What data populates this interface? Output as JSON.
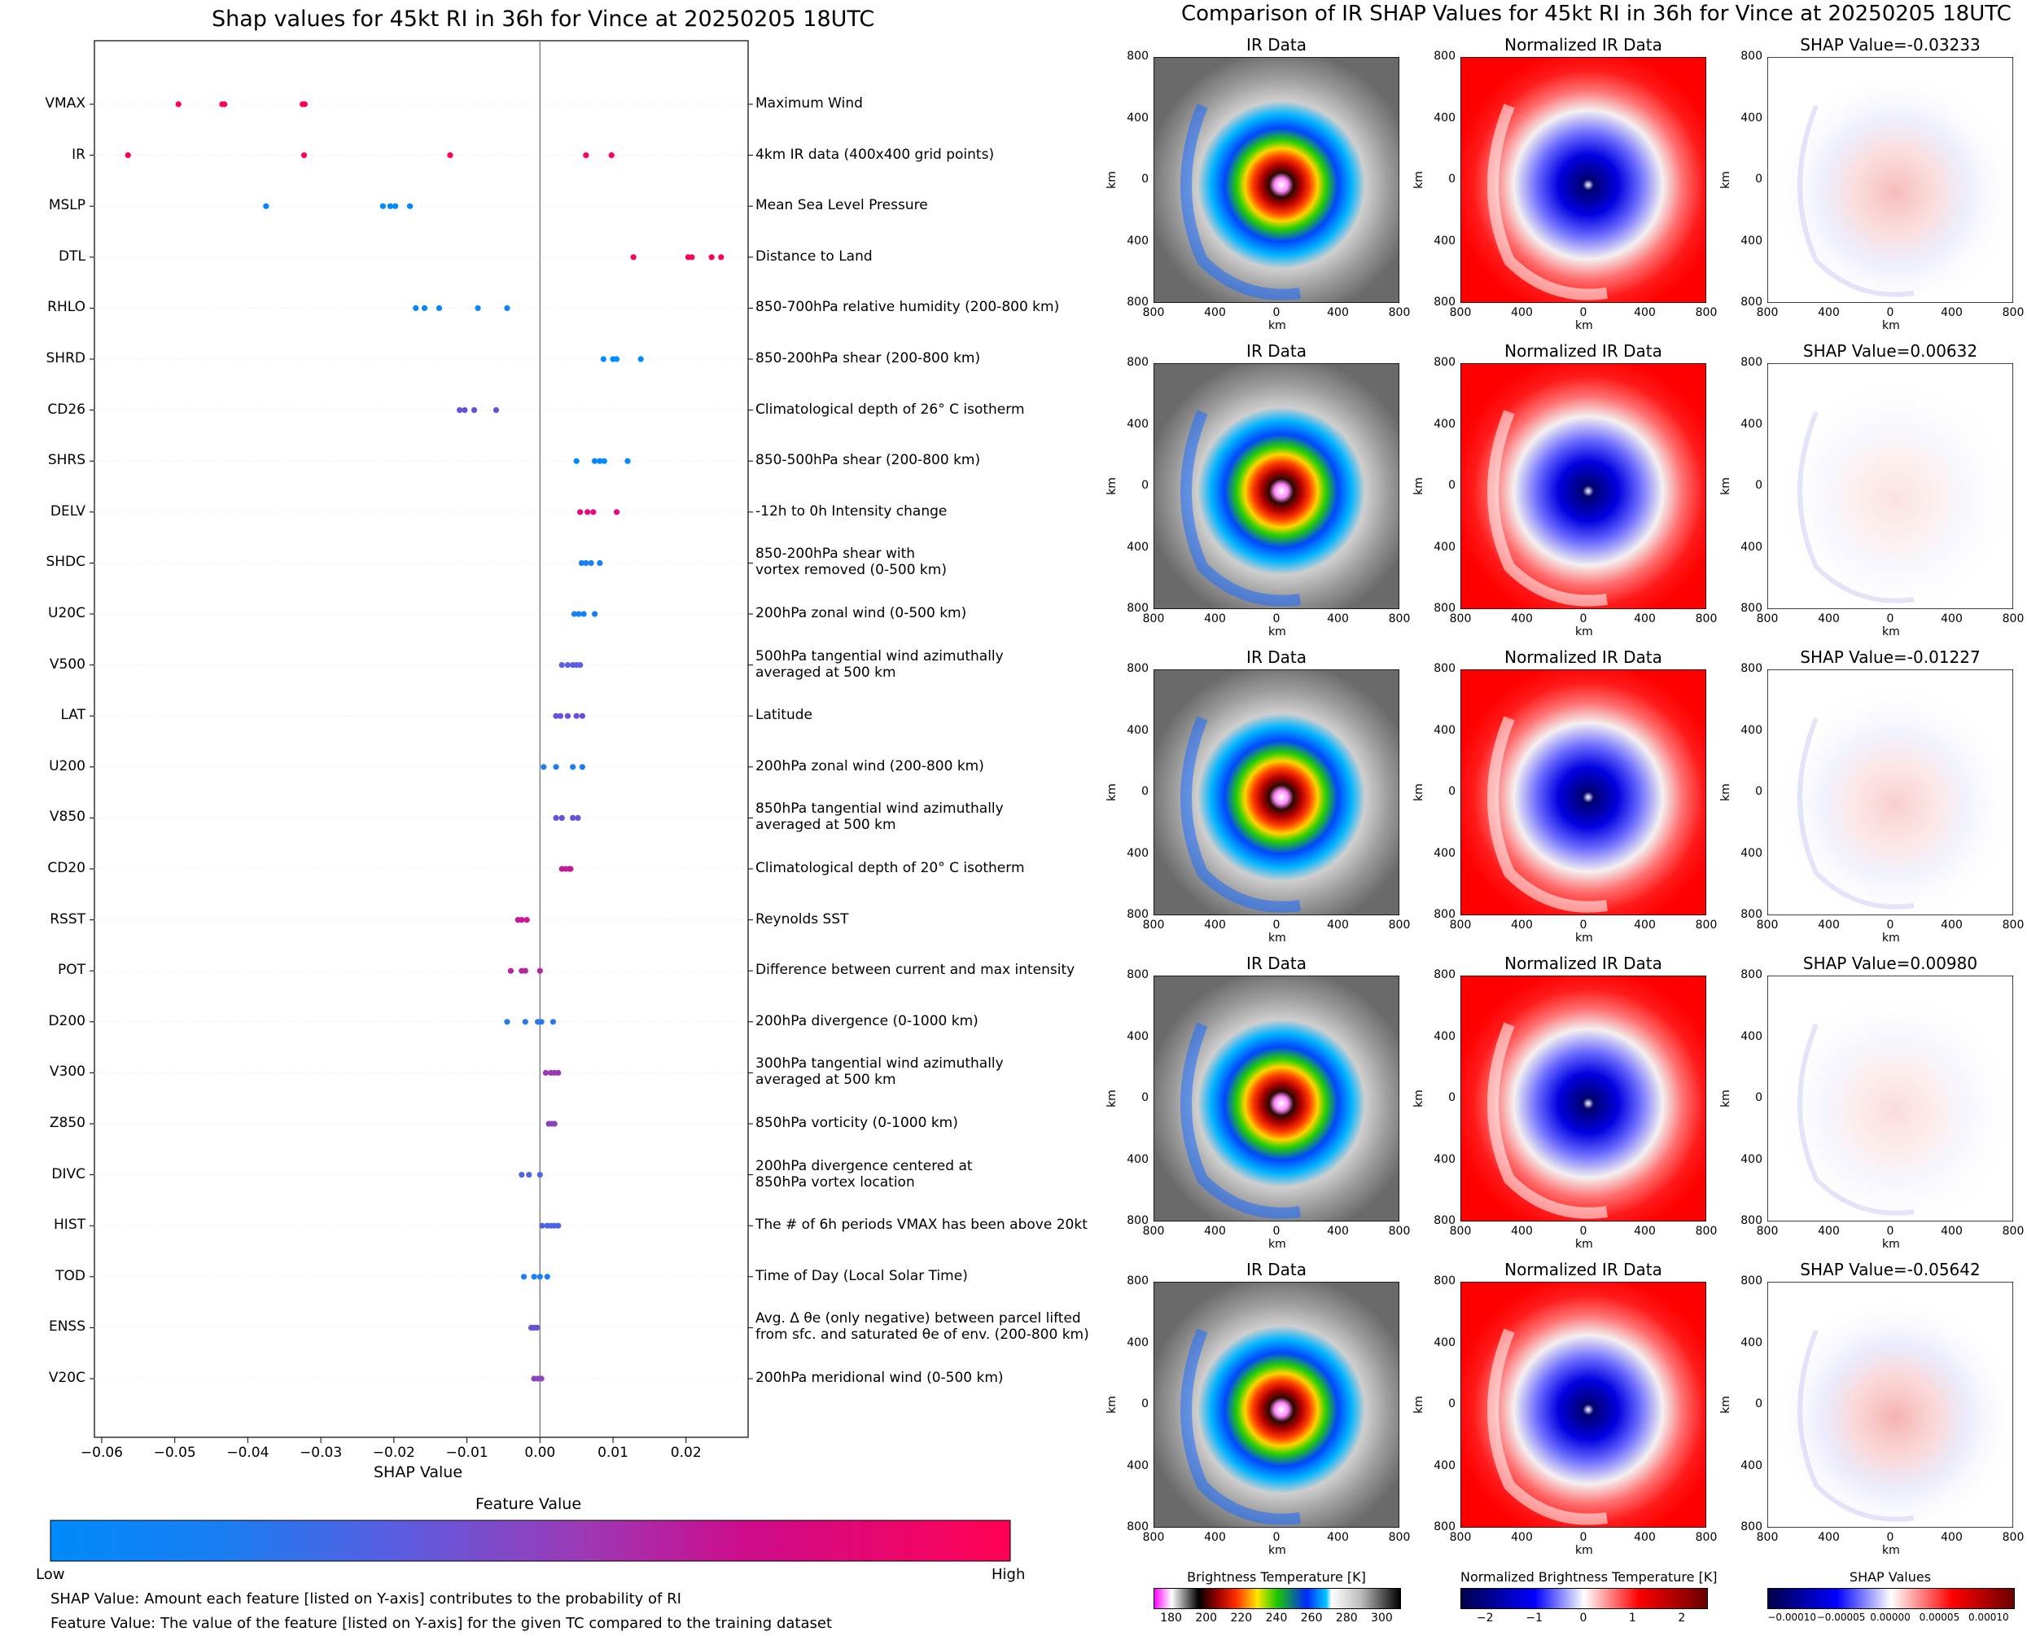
{
  "left": {
    "title": "Shap values for 45kt RI in 36h for Vince at 20250205 18UTC",
    "colorbar_title": "Feature Value",
    "colorbar_low": "Low",
    "colorbar_high": "High",
    "note_shap": "SHAP Value: Amount each feature [listed on Y-axis] contributes to the probability of RI",
    "note_feature": "Feature Value: The value of the feature [listed on Y-axis] for the given TC compared to the training dataset"
  },
  "right": {
    "title": "Comparison of IR SHAP Values for 45kt RI in 36h for Vince at 20250205 18UTC",
    "ir_title": "IR Data",
    "norm_title": "Normalized IR Data",
    "axis_unit": "km",
    "tick_labels": [
      "800",
      "400",
      "0",
      "400",
      "800"
    ],
    "shap_titles": [
      "SHAP Value=-0.03233",
      "SHAP Value=0.00632",
      "SHAP Value=-0.01227",
      "SHAP Value=0.00980",
      "SHAP Value=-0.05642"
    ],
    "cbar_bt": {
      "label": "Brightness Temperature [K]",
      "ticks": [
        "180",
        "200",
        "220",
        "240",
        "260",
        "280",
        "300"
      ]
    },
    "cbar_norm": {
      "label": "Normalized Brightness Temperature [K]",
      "ticks": [
        "−2",
        "−1",
        "0",
        "1",
        "2"
      ]
    },
    "cbar_shap": {
      "label": "SHAP Values",
      "ticks": [
        "−0.00010",
        "−0.00005",
        "0.00000",
        "0.00005",
        "0.00010"
      ]
    }
  },
  "chart_data": [
    {
      "type": "scatter",
      "title": "Shap values for 45kt RI in 36h for Vince at 20250205 18UTC",
      "xlabel": "SHAP Value",
      "xlim": [
        -0.061,
        0.0285
      ],
      "xticks": [
        "−0.06",
        "−0.05",
        "−0.04",
        "−0.03",
        "−0.02",
        "−0.01",
        "0.00",
        "0.01",
        "0.02"
      ],
      "colorbar": {
        "title": "Feature Value",
        "low": "Low",
        "high": "High",
        "colors": [
          "#008afb",
          "#5a5de0",
          "#9b3ab6",
          "#ff0052"
        ]
      },
      "features": [
        {
          "name": "VMAX",
          "desc": "Maximum Wind",
          "color": "#ff0052",
          "shap": [
            -0.0495,
            -0.0435,
            -0.0432,
            -0.0325,
            -0.0322
          ]
        },
        {
          "name": "IR",
          "desc": "4km IR data (400x400 grid points)",
          "color": "#ff0052",
          "shap": [
            -0.0564,
            -0.0323,
            -0.0123,
            0.0063,
            0.0098
          ]
        },
        {
          "name": "MSLP",
          "desc": "Mean Sea Level Pressure",
          "color": "#008afb",
          "shap": [
            -0.0375,
            -0.0215,
            -0.0205,
            -0.0198,
            -0.0178
          ]
        },
        {
          "name": "DTL",
          "desc": "Distance to Land",
          "color": "#ff0052",
          "shap": [
            0.0128,
            0.0203,
            0.0208,
            0.0235,
            0.0248
          ]
        },
        {
          "name": "RHLO",
          "desc": "850-700hPa relative humidity (200-800 km)",
          "color": "#0d85f8",
          "shap": [
            -0.017,
            -0.0158,
            -0.0138,
            -0.0085,
            -0.0045
          ]
        },
        {
          "name": "SHRD",
          "desc": "850-200hPa shear (200-800 km)",
          "color": "#008afb",
          "shap": [
            0.0087,
            0.01,
            0.0105,
            0.0138
          ]
        },
        {
          "name": "CD26",
          "desc": "Climatological depth of 26° C isotherm",
          "color": "#6a50d8",
          "shap": [
            -0.011,
            -0.0103,
            -0.009,
            -0.006
          ]
        },
        {
          "name": "SHRS",
          "desc": "850-500hPa shear (200-800 km)",
          "color": "#008afb",
          "shap": [
            0.005,
            0.0075,
            0.0082,
            0.0088,
            0.012
          ]
        },
        {
          "name": "DELV",
          "desc": "-12h to 0h Intensity change",
          "color": "#e8087a",
          "shap": [
            0.0055,
            0.0065,
            0.0073,
            0.0105
          ]
        },
        {
          "name": "SHDC",
          "desc": "850-200hPa shear with\nvortex removed (0-500 km)",
          "color": "#1a80f3",
          "shap": [
            0.0057,
            0.0063,
            0.007,
            0.0082
          ]
        },
        {
          "name": "U20C",
          "desc": "200hPa zonal wind (0-500 km)",
          "color": "#1481f5",
          "shap": [
            0.0047,
            0.0053,
            0.006,
            0.0075
          ]
        },
        {
          "name": "V500",
          "desc": "500hPa tangential wind azimuthally\naveraged at 500 km",
          "color": "#5a5ee0",
          "shap": [
            0.003,
            0.0038,
            0.0045,
            0.005,
            0.0055
          ]
        },
        {
          "name": "LAT",
          "desc": "Latitude",
          "color": "#6451da",
          "shap": [
            0.0022,
            0.0028,
            0.0038,
            0.005,
            0.0058
          ]
        },
        {
          "name": "U200",
          "desc": "200hPa zonal wind (200-800 km)",
          "color": "#1a7ef1",
          "shap": [
            0.0005,
            0.0022,
            0.0045,
            0.0058
          ]
        },
        {
          "name": "V850",
          "desc": "850hPa tangential wind azimuthally\naveraged at 500 km",
          "color": "#6a4fd8",
          "shap": [
            0.0022,
            0.003,
            0.0045,
            0.0052
          ]
        },
        {
          "name": "CD20",
          "desc": "Climatological depth of 20° C isotherm",
          "color": "#c11a96",
          "shap": [
            0.003,
            0.0035,
            0.004,
            0.0042
          ]
        },
        {
          "name": "RSST",
          "desc": "Reynolds SST",
          "color": "#c41895",
          "shap": [
            -0.003,
            -0.0025,
            -0.0018
          ]
        },
        {
          "name": "POT",
          "desc": "Difference between current and max intensity",
          "color": "#b526a0",
          "shap": [
            -0.004,
            -0.0025,
            -0.002,
            0.0
          ]
        },
        {
          "name": "D200",
          "desc": "200hPa divergence (0-1000 km)",
          "color": "#2b78ea",
          "shap": [
            -0.0045,
            -0.002,
            -0.0003,
            0.0002,
            0.0018
          ]
        },
        {
          "name": "V300",
          "desc": "300hPa tangential wind azimuthally\naveraged at 500 km",
          "color": "#9a3ab8",
          "shap": [
            0.0008,
            0.0015,
            0.002,
            0.0025
          ]
        },
        {
          "name": "Z850",
          "desc": "850hPa vorticity (0-1000 km)",
          "color": "#8d42bd",
          "shap": [
            0.0012,
            0.0016,
            0.002
          ]
        },
        {
          "name": "DIVC",
          "desc": "200hPa divergence centered at\n850hPa vortex location",
          "color": "#4a66e4",
          "shap": [
            -0.0025,
            -0.0015,
            0.0
          ]
        },
        {
          "name": "HIST",
          "desc": "The # of 6h periods VMAX has been above 20kt",
          "color": "#4d64e2",
          "shap": [
            0.0003,
            0.001,
            0.0015,
            0.002,
            0.0025
          ]
        },
        {
          "name": "TOD",
          "desc": "Time of Day (Local Solar Time)",
          "color": "#1a80f2",
          "shap": [
            -0.0022,
            -0.0008,
            0.0,
            0.001
          ]
        },
        {
          "name": "ENSS",
          "desc": "Avg. Δ θe (only negative) between parcel lifted\nfrom sfc. and saturated θe of env. (200-800 km)",
          "color": "#6b4fd6",
          "shap": [
            -0.0012,
            -0.0008,
            -0.0004
          ]
        },
        {
          "name": "V20C",
          "desc": "200hPa meridional wind (0-500 km)",
          "color": "#8e42bc",
          "shap": [
            -0.0008,
            -0.0003,
            0.0002
          ]
        }
      ]
    },
    {
      "type": "heatmap",
      "title": "Comparison of IR SHAP Values for 45kt RI in 36h for Vince at 20250205 18UTC",
      "panels": [
        "IR Data",
        "Normalized IR Data",
        "SHAP Value"
      ],
      "rows": 5,
      "xlim_km": [
        -800,
        800
      ],
      "ylim_km": [
        -800,
        800
      ],
      "shap_values": [
        -0.03233,
        0.00632,
        -0.01227,
        0.0098,
        -0.05642
      ]
    }
  ]
}
